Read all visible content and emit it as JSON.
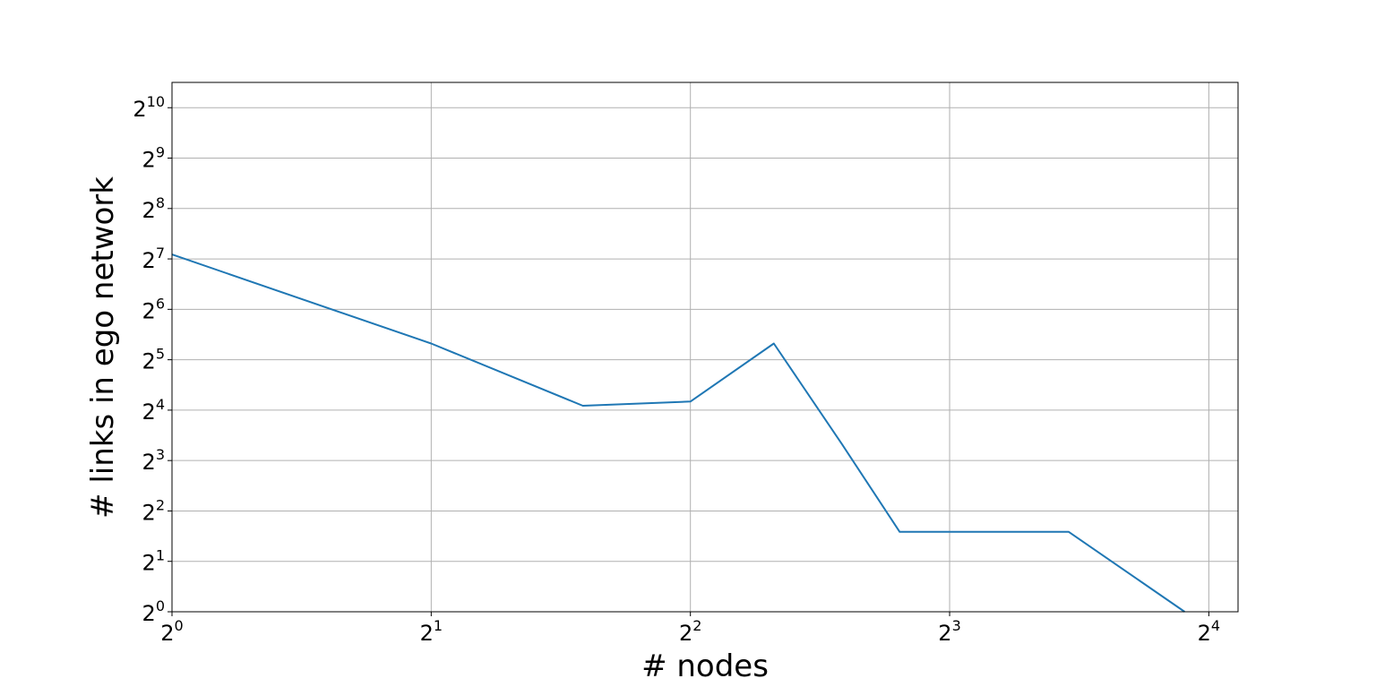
{
  "chart_data": {
    "type": "line",
    "title": "",
    "xlabel": "# nodes",
    "ylabel": "# links in ego network",
    "xscale": "log2",
    "yscale": "log2",
    "grid": true,
    "xlim": [
      1,
      17.3
    ],
    "ylim": [
      1,
      1450
    ],
    "xticks": [
      {
        "value": 1,
        "base": "2",
        "exp": "0"
      },
      {
        "value": 2,
        "base": "2",
        "exp": "1"
      },
      {
        "value": 4,
        "base": "2",
        "exp": "2"
      },
      {
        "value": 8,
        "base": "2",
        "exp": "3"
      },
      {
        "value": 16,
        "base": "2",
        "exp": "4"
      }
    ],
    "yticks": [
      {
        "value": 1,
        "base": "2",
        "exp": "0"
      },
      {
        "value": 2,
        "base": "2",
        "exp": "1"
      },
      {
        "value": 4,
        "base": "2",
        "exp": "2"
      },
      {
        "value": 8,
        "base": "2",
        "exp": "3"
      },
      {
        "value": 16,
        "base": "2",
        "exp": "4"
      },
      {
        "value": 32,
        "base": "2",
        "exp": "5"
      },
      {
        "value": 64,
        "base": "2",
        "exp": "6"
      },
      {
        "value": 128,
        "base": "2",
        "exp": "7"
      },
      {
        "value": 256,
        "base": "2",
        "exp": "8"
      },
      {
        "value": 512,
        "base": "2",
        "exp": "9"
      },
      {
        "value": 1024,
        "base": "2",
        "exp": "10"
      }
    ],
    "series": [
      {
        "color": "#1f77b4",
        "x": [
          1,
          2,
          3.0,
          4.0,
          5.0,
          6.0,
          7.0,
          11.0,
          15.0
        ],
        "y": [
          136,
          40,
          17,
          18,
          40,
          10,
          3,
          3,
          1
        ]
      }
    ]
  }
}
